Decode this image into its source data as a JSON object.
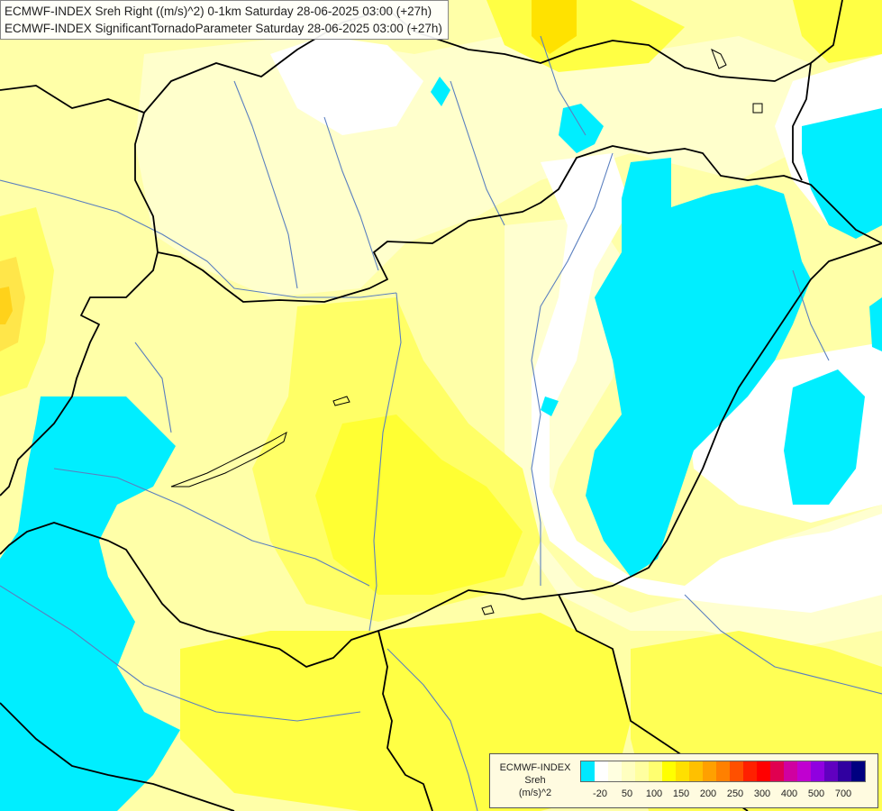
{
  "header": {
    "line1": "ECMWF-INDEX Sreh Right ((m/s)^2) 0-1km Saturday 28-06-2025 03:00 (+27h)",
    "line2": "ECMWF-INDEX SignificantTornadoParameter Saturday 28-06-2025 03:00 (+27h)"
  },
  "legend": {
    "source": "ECMWF-INDEX",
    "variable": "Sreh",
    "units": "(m/s)^2",
    "colors": [
      "#00e8ff",
      "#ffffff",
      "#ffffe0",
      "#ffffc0",
      "#ffffa0",
      "#ffff70",
      "#ffff00",
      "#ffe000",
      "#ffc000",
      "#ffa000",
      "#ff8000",
      "#ff5000",
      "#ff2000",
      "#ff0000",
      "#e00050",
      "#d000a0",
      "#c000d0",
      "#9000e0",
      "#6000c0",
      "#3000a0",
      "#000080"
    ],
    "ticks": [
      "-20",
      "50",
      "100",
      "150",
      "200",
      "250",
      "300",
      "400",
      "500",
      "700"
    ]
  },
  "map": {
    "fill_colors": {
      "cyan": "#00eeff",
      "white": "#ffffff",
      "pale_yellow": "#ffffc8",
      "light_yellow": "#ffff96",
      "yellow": "#ffff55",
      "bright_yellow": "#ffff00",
      "gold": "#ffe600",
      "orange_gold": "#ffd000"
    },
    "border_color": "#000000",
    "river_color": "#5a7fbf"
  }
}
